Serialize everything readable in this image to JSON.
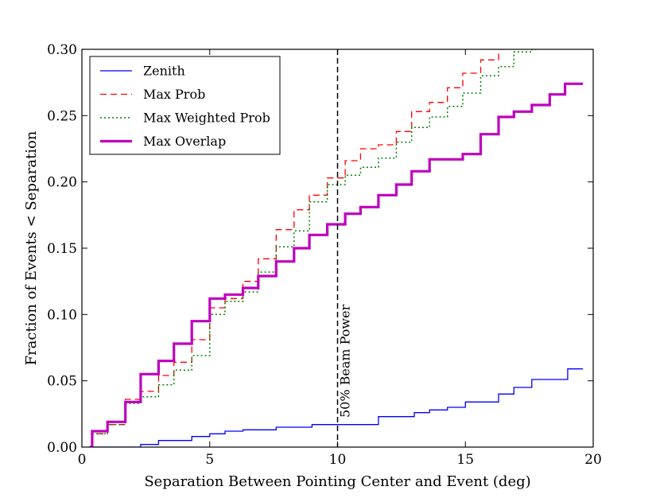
{
  "chart_data": {
    "type": "line",
    "title": "",
    "xlabel": "Separation Between Pointing Center and Event (deg)",
    "ylabel": "Fraction of Events < Separation",
    "xlim": [
      0,
      20
    ],
    "ylim": [
      0,
      0.3
    ],
    "xticks": [
      0,
      5,
      10,
      15,
      20
    ],
    "yticks": [
      0.0,
      0.05,
      0.1,
      0.15,
      0.2,
      0.25,
      0.3
    ],
    "xtick_labels": [
      "0",
      "5",
      "10",
      "15",
      "20"
    ],
    "ytick_labels": [
      "0.00",
      "0.05",
      "0.10",
      "0.15",
      "0.20",
      "0.25",
      "0.30"
    ],
    "grid": false,
    "legend_position": "top-left",
    "series": [
      {
        "name": "Zenith",
        "color": "#0000ff",
        "style": "solid",
        "width": 1.3,
        "x": [
          0.3,
          2.3,
          3.0,
          4.3,
          5.0,
          5.6,
          6.3,
          7.6,
          9.0,
          10.3,
          11.0,
          11.6,
          12.3,
          13.0,
          13.6,
          14.3,
          15.0,
          16.3,
          16.9,
          17.6,
          19.0,
          19.6
        ],
        "y": [
          0.0,
          0.002,
          0.005,
          0.008,
          0.01,
          0.012,
          0.013,
          0.015,
          0.017,
          0.017,
          0.017,
          0.023,
          0.023,
          0.026,
          0.028,
          0.03,
          0.034,
          0.04,
          0.045,
          0.051,
          0.059,
          0.059
        ]
      },
      {
        "name": "Max Prob",
        "color": "#ff0000",
        "style": "dashed",
        "width": 1.3,
        "x": [
          0.3,
          0.4,
          1.0,
          1.7,
          2.3,
          3.0,
          3.6,
          4.3,
          5.0,
          5.6,
          6.3,
          6.9,
          7.6,
          8.3,
          8.9,
          9.6,
          10.3,
          10.9,
          11.6,
          12.3,
          12.9,
          13.6,
          14.3,
          14.9,
          15.6,
          16.3,
          16.6
        ],
        "y": [
          0.0,
          0.01,
          0.017,
          0.036,
          0.042,
          0.054,
          0.064,
          0.081,
          0.105,
          0.112,
          0.125,
          0.142,
          0.164,
          0.179,
          0.19,
          0.203,
          0.216,
          0.225,
          0.228,
          0.238,
          0.253,
          0.26,
          0.271,
          0.282,
          0.292,
          0.3,
          0.3
        ]
      },
      {
        "name": "Max Weighted Prob",
        "color": "#008000",
        "style": "dotted",
        "width": 1.5,
        "x": [
          0.3,
          0.4,
          1.0,
          1.7,
          2.3,
          3.0,
          3.6,
          4.3,
          5.0,
          5.6,
          6.3,
          6.9,
          7.6,
          8.3,
          8.9,
          9.6,
          10.3,
          10.9,
          11.6,
          12.3,
          12.9,
          13.6,
          14.3,
          14.9,
          15.6,
          16.3,
          16.9,
          17.6,
          17.8
        ],
        "y": [
          0.0,
          0.01,
          0.017,
          0.033,
          0.038,
          0.047,
          0.058,
          0.069,
          0.1,
          0.11,
          0.117,
          0.132,
          0.151,
          0.163,
          0.185,
          0.198,
          0.205,
          0.211,
          0.218,
          0.23,
          0.241,
          0.249,
          0.257,
          0.267,
          0.28,
          0.287,
          0.298,
          0.3,
          0.3
        ]
      },
      {
        "name": "Max Overlap",
        "color": "#bf00bf",
        "style": "solid",
        "width": 3.2,
        "x": [
          0.3,
          0.4,
          1.0,
          1.7,
          2.3,
          3.0,
          3.6,
          4.3,
          5.0,
          5.6,
          6.3,
          6.9,
          7.6,
          8.3,
          8.9,
          9.6,
          10.3,
          10.9,
          11.6,
          12.3,
          12.9,
          13.6,
          14.3,
          14.9,
          15.6,
          16.3,
          16.9,
          17.6,
          18.3,
          18.9,
          19.6
        ],
        "y": [
          0.0,
          0.012,
          0.019,
          0.034,
          0.055,
          0.065,
          0.078,
          0.095,
          0.112,
          0.115,
          0.12,
          0.129,
          0.14,
          0.15,
          0.16,
          0.168,
          0.176,
          0.181,
          0.19,
          0.198,
          0.208,
          0.217,
          0.217,
          0.221,
          0.236,
          0.249,
          0.253,
          0.258,
          0.266,
          0.274,
          0.274
        ]
      }
    ],
    "annotation": {
      "label": "50% Beam Power",
      "x": 10.0,
      "color": "#000000",
      "style": "dashed"
    }
  }
}
